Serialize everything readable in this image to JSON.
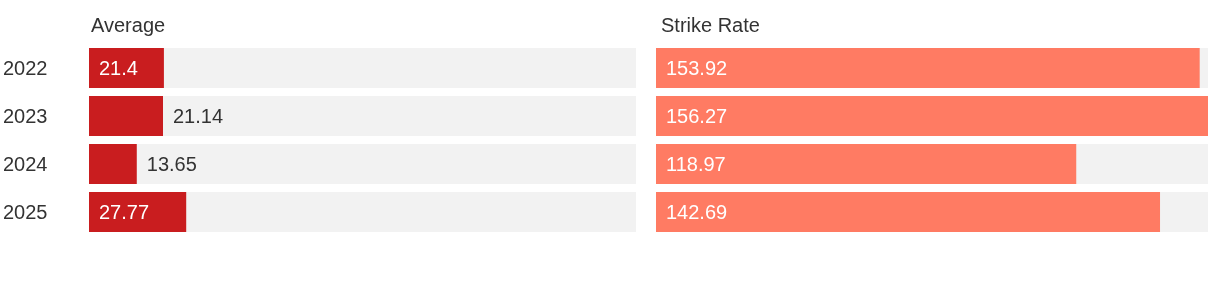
{
  "chart_data": [
    {
      "type": "bar",
      "orientation": "horizontal",
      "title": "Average",
      "categories": [
        "2022",
        "2023",
        "2024",
        "2025"
      ],
      "values": [
        21.4,
        21.14,
        13.65,
        27.77
      ],
      "color": "#c91d1f",
      "xlim": [
        0,
        156.27
      ],
      "data_labels": true,
      "tick_labels": "y"
    },
    {
      "type": "bar",
      "orientation": "horizontal",
      "title": "Strike Rate",
      "categories": [
        "2022",
        "2023",
        "2024",
        "2025"
      ],
      "values": [
        153.92,
        156.27,
        118.97,
        142.69
      ],
      "color": "#ff7b63",
      "xlim": [
        0,
        156.27
      ],
      "data_labels": true,
      "tick_labels": false
    }
  ]
}
